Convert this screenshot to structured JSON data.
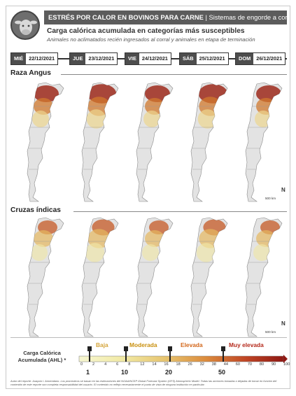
{
  "header": {
    "title_bold": "ESTRÉS POR CALOR EN BOVINOS PARA CARNE",
    "title_rest": " | Sistemas de engorde a corral",
    "subtitle": "Carga calórica acumulada en categorías más susceptibles",
    "subtitle2": "Animales no aclimatados recién ingresados al corral y animales en etapa de terminación",
    "logo_icon": "cow-head-icon"
  },
  "dates": [
    {
      "day": "MIÉ",
      "date": "22/12/2021"
    },
    {
      "day": "JUE",
      "date": "23/12/2021"
    },
    {
      "day": "VIE",
      "date": "24/12/2021"
    },
    {
      "day": "SÁB",
      "date": "25/12/2021"
    },
    {
      "day": "DOM",
      "date": "26/12/2021"
    }
  ],
  "sections": [
    {
      "title": "Raza Angus",
      "scale": "500 km"
    },
    {
      "title": "Cruzas índicas",
      "scale": "500 km"
    }
  ],
  "north_label": "N",
  "legend": {
    "label": "Carga Calórica Acumulada (AHL) *",
    "categories": [
      {
        "name": "Baja",
        "color": "#e8c26a"
      },
      {
        "name": "Moderada",
        "color": "#d59a1a"
      },
      {
        "name": "Elevada",
        "color": "#d9601a"
      },
      {
        "name": "Muy elevada",
        "color": "#b0201a"
      }
    ],
    "ticks": [
      "0",
      "2",
      "4",
      "6",
      "8",
      "12",
      "14",
      "16",
      "18",
      "26",
      "32",
      "38",
      "44",
      "60",
      "70",
      "80",
      "90",
      "100"
    ],
    "thresholds": [
      "1",
      "10",
      "20",
      "50"
    ],
    "colors": {
      "baja": "#f3f2b8",
      "moderada": "#e8c86a",
      "elevada": "#d88a3a",
      "muy_elevada": "#a8231b"
    }
  },
  "footnote": "Autor del reporte: Joaquín I. Armendano. Los pronósticos se basan en las estimaciones del NOAA/NCEP Global Forecast System (GFS) Atmospheric Model. Todas las acciones tomadas o dejadas de tomar en función del contenido de este reporte son completa responsabilidad del usuario. El contenido no refleja necesariamente el punto de vista de ninguna institución en particular."
}
